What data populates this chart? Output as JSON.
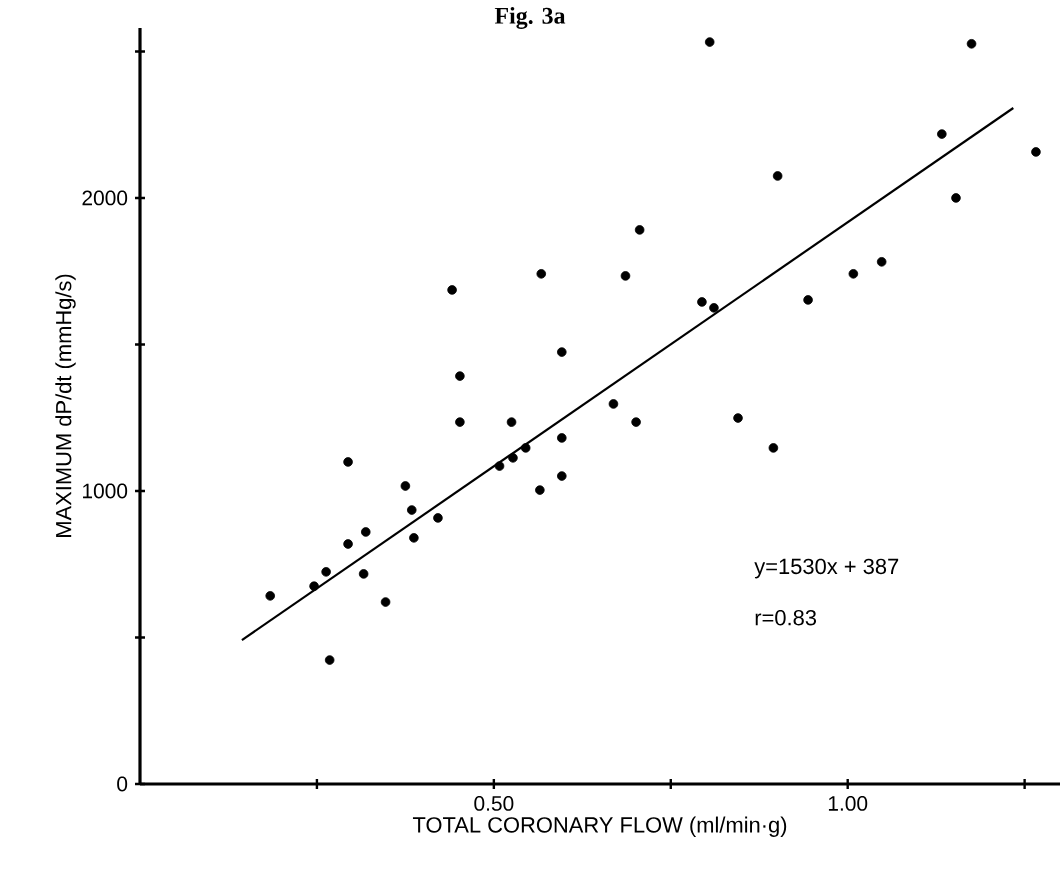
{
  "chart_data": {
    "type": "scatter",
    "title": "Fig. 3a",
    "xlabel": "TOTAL  CORONARY  FLOW (ml/min·g)",
    "ylabel": "MAXIMUM dP/dt (mmHg/s)",
    "xlim": [
      0,
      1.3
    ],
    "ylim": [
      0,
      2580
    ],
    "xticks": [
      {
        "value": 0.25,
        "label": null
      },
      {
        "value": 0.5,
        "label": "0.50"
      },
      {
        "value": 0.75,
        "label": null
      },
      {
        "value": 1.0,
        "label": "1.00"
      },
      {
        "value": 1.25,
        "label": null
      }
    ],
    "yticks": [
      0,
      {
        "value": 500,
        "label": null
      },
      1000,
      {
        "value": 1500,
        "label": null
      },
      2000,
      {
        "value": 2500,
        "label": null
      }
    ],
    "annotations": [
      "y=1530x + 387",
      "r=0.83"
    ],
    "series": [
      {
        "color": "#000000",
        "marker": "circle",
        "x": [
          0.184,
          0.246,
          0.263,
          0.268,
          0.294,
          0.294,
          0.316,
          0.319,
          0.347,
          0.375,
          0.384,
          0.387,
          0.421,
          0.441,
          0.452,
          0.452,
          0.508,
          0.525,
          0.527,
          0.545,
          0.567,
          0.565,
          0.596,
          0.596,
          0.596,
          0.669,
          0.686,
          0.701,
          0.706,
          0.794,
          0.811,
          0.805,
          0.845,
          0.895,
          0.901,
          0.944,
          1.008,
          1.048,
          1.133,
          1.153,
          1.175,
          1.266
        ],
        "values": [
          642,
          675,
          724,
          423,
          1099,
          819,
          717,
          860,
          621,
          1017,
          935,
          840,
          908,
          1686,
          1392,
          1235,
          1085,
          1235,
          1113,
          1147,
          1741,
          1003,
          1474,
          1181,
          1051,
          1297,
          1734,
          1235,
          1891,
          1645,
          1625,
          2532,
          1249,
          1147,
          2075,
          1652,
          1741,
          1782,
          2218,
          2000,
          2526,
          2157
        ]
      },
      {
        "type": "line",
        "color": "#000000",
        "marker": "none",
        "x": [
          0.144,
          1.234
        ],
        "values": [
          491,
          2307
        ]
      }
    ]
  }
}
